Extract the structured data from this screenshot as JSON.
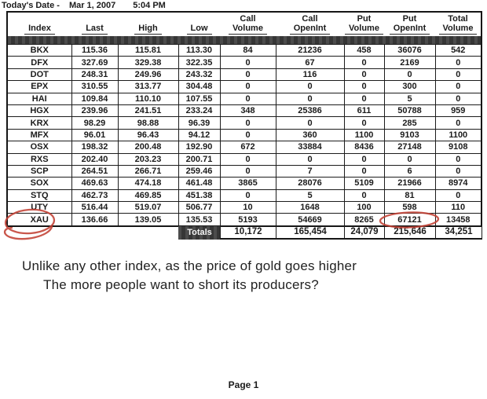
{
  "header": {
    "date_label": "Today's Date -",
    "date": "Mar 1, 2007",
    "time": "5:04 PM"
  },
  "table": {
    "group_headers": {
      "call1": "Call",
      "call2": "Call",
      "put1": "Put",
      "put2": "Put",
      "total": "Total"
    },
    "column_headers": [
      "Index",
      "Last",
      "High",
      "Low",
      "Volume",
      "OpenInt",
      "Volume",
      "OpenInt",
      "Volume"
    ],
    "rows": [
      [
        "BKX",
        "115.36",
        "115.81",
        "113.30",
        "84",
        "21236",
        "458",
        "36076",
        "542"
      ],
      [
        "DFX",
        "327.69",
        "329.38",
        "322.35",
        "0",
        "67",
        "0",
        "2169",
        "0"
      ],
      [
        "DOT",
        "248.31",
        "249.96",
        "243.32",
        "0",
        "116",
        "0",
        "0",
        "0"
      ],
      [
        "EPX",
        "310.55",
        "313.77",
        "304.48",
        "0",
        "0",
        "0",
        "300",
        "0"
      ],
      [
        "HAI",
        "109.84",
        "110.10",
        "107.55",
        "0",
        "0",
        "0",
        "5",
        "0"
      ],
      [
        "HGX",
        "239.96",
        "241.51",
        "233.24",
        "348",
        "25386",
        "611",
        "50788",
        "959"
      ],
      [
        "KRX",
        "98.29",
        "98.88",
        "96.39",
        "0",
        "0",
        "0",
        "285",
        "0"
      ],
      [
        "MFX",
        "96.01",
        "96.43",
        "94.12",
        "0",
        "360",
        "1100",
        "9103",
        "1100"
      ],
      [
        "OSX",
        "198.32",
        "200.48",
        "192.90",
        "672",
        "33884",
        "8436",
        "27148",
        "9108"
      ],
      [
        "RXS",
        "202.40",
        "203.23",
        "200.71",
        "0",
        "0",
        "0",
        "0",
        "0"
      ],
      [
        "SCP",
        "264.51",
        "266.71",
        "259.46",
        "0",
        "7",
        "0",
        "6",
        "0"
      ],
      [
        "SOX",
        "469.63",
        "474.18",
        "461.48",
        "3865",
        "28076",
        "5109",
        "21966",
        "8974"
      ],
      [
        "STQ",
        "462.73",
        "469.85",
        "451.38",
        "0",
        "5",
        "0",
        "81",
        "0"
      ],
      [
        "UTY",
        "516.44",
        "519.07",
        "506.77",
        "10",
        "1648",
        "100",
        "598",
        "110"
      ],
      [
        "XAU",
        "136.66",
        "139.05",
        "135.53",
        "5193",
        "54669",
        "8265",
        "67121",
        "13458"
      ]
    ],
    "totals_label": "Totals",
    "totals": [
      "10,172",
      "165,454",
      "24,079",
      "215,646",
      "34,251"
    ]
  },
  "annotations": {
    "circled_index": "XAU",
    "circled_value": "67121",
    "pen_color": "#c24034"
  },
  "commentary": {
    "line1": "Unlike any other index, as the price of gold goes higher",
    "line2": "The more people want to short its producers?"
  },
  "footer": {
    "page": "Page 1"
  }
}
